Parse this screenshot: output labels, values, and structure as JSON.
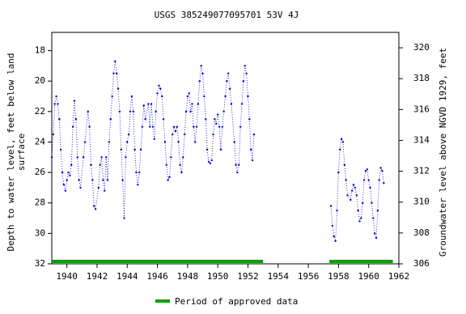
{
  "chart_data": {
    "type": "scatter",
    "title": "USGS 385249077095701 53V  4J",
    "y_label": [
      "Depth to water level, feet below land",
      "surface"
    ],
    "y2_label": "Groundwater level above NGVD 1929, feet",
    "xlim": [
      1939,
      1962
    ],
    "xticks": [
      1940,
      1942,
      1944,
      1946,
      1948,
      1950,
      1952,
      1954,
      1956,
      1958,
      1960,
      1962
    ],
    "ylim": [
      32,
      16.8
    ],
    "yticks": [
      18,
      20,
      22,
      24,
      26,
      28,
      30,
      32
    ],
    "y2lim": [
      306,
      321
    ],
    "y2ticks": [
      306,
      308,
      310,
      312,
      314,
      316,
      318,
      320
    ],
    "x": [
      1939.0,
      1939.1,
      1939.2,
      1939.3,
      1939.4,
      1939.5,
      1939.6,
      1939.7,
      1939.8,
      1939.9,
      1940.0,
      1940.1,
      1940.2,
      1940.3,
      1940.4,
      1940.5,
      1940.6,
      1940.7,
      1940.8,
      1940.9,
      1941.1,
      1941.2,
      1941.4,
      1941.5,
      1941.6,
      1941.7,
      1941.8,
      1941.9,
      1942.1,
      1942.2,
      1942.3,
      1942.4,
      1942.5,
      1942.6,
      1942.7,
      1942.8,
      1942.9,
      1943.0,
      1943.1,
      1943.2,
      1943.3,
      1943.4,
      1943.5,
      1943.6,
      1943.7,
      1943.8,
      1943.9,
      1944.0,
      1944.1,
      1944.2,
      1944.3,
      1944.4,
      1944.5,
      1944.6,
      1944.7,
      1944.8,
      1944.9,
      1945.0,
      1945.1,
      1945.2,
      1945.4,
      1945.5,
      1945.6,
      1945.7,
      1945.8,
      1945.9,
      1946.0,
      1946.1,
      1946.2,
      1946.3,
      1946.4,
      1946.5,
      1946.6,
      1946.7,
      1946.8,
      1946.9,
      1947.0,
      1947.1,
      1947.2,
      1947.3,
      1947.4,
      1947.5,
      1947.6,
      1947.7,
      1947.8,
      1947.9,
      1948.0,
      1948.1,
      1948.2,
      1948.3,
      1948.4,
      1948.5,
      1948.6,
      1948.7,
      1948.8,
      1948.9,
      1949.0,
      1949.1,
      1949.2,
      1949.3,
      1949.4,
      1949.5,
      1949.6,
      1949.7,
      1949.8,
      1949.9,
      1950.0,
      1950.1,
      1950.2,
      1950.3,
      1950.4,
      1950.5,
      1950.6,
      1950.7,
      1950.8,
      1950.9,
      1951.1,
      1951.2,
      1951.3,
      1951.4,
      1951.5,
      1951.6,
      1951.7,
      1951.8,
      1951.9,
      1952.0,
      1952.1,
      1952.2,
      1952.3,
      1952.4,
      1955.0,
      1957.5,
      1957.6,
      1957.7,
      1957.8,
      1957.9,
      1958.0,
      1958.1,
      1958.2,
      1958.3,
      1958.4,
      1958.5,
      1958.6,
      1958.8,
      1958.9,
      1959.0,
      1959.1,
      1959.2,
      1959.3,
      1959.4,
      1959.5,
      1959.6,
      1959.7,
      1959.8,
      1959.9,
      1960.0,
      1960.1,
      1960.2,
      1960.3,
      1960.4,
      1960.5,
      1960.6,
      1960.7,
      1960.8,
      1960.9,
      1961.0
    ],
    "series": [
      {
        "name": "Depth to water level",
        "color": "#0000cc",
        "values": [
          25.0,
          23.5,
          21.5,
          21.0,
          21.5,
          22.5,
          24.5,
          26.0,
          26.8,
          27.2,
          26.5,
          26.0,
          26.2,
          25.5,
          23.0,
          21.3,
          22.5,
          25.0,
          26.5,
          27.0,
          25.0,
          24.0,
          22.0,
          23.0,
          25.5,
          26.5,
          28.2,
          28.4,
          27.0,
          25.5,
          25.0,
          26.5,
          27.2,
          25.0,
          26.5,
          24.0,
          22.5,
          21.0,
          19.5,
          18.7,
          19.5,
          20.5,
          22.0,
          24.5,
          26.5,
          29.0,
          25.0,
          24.0,
          23.5,
          22.0,
          21.0,
          22.0,
          24.5,
          26.0,
          26.8,
          26.0,
          24.5,
          23.0,
          21.6,
          22.5,
          21.5,
          23.0,
          21.5,
          23.0,
          23.8,
          22.0,
          20.8,
          20.3,
          20.5,
          21.0,
          22.5,
          24.0,
          25.5,
          26.5,
          26.3,
          25.0,
          23.5,
          23.0,
          23.3,
          23.0,
          24.0,
          25.5,
          26.0,
          25.0,
          23.5,
          22.0,
          21.0,
          20.8,
          22.0,
          21.5,
          23.0,
          24.0,
          23.0,
          21.5,
          20.0,
          19.0,
          19.5,
          21.0,
          22.5,
          24.5,
          25.3,
          25.4,
          25.2,
          23.5,
          22.5,
          22.8,
          22.2,
          23.0,
          24.5,
          23.0,
          22.0,
          21.0,
          20.0,
          19.5,
          20.5,
          21.5,
          24.0,
          25.5,
          26.0,
          25.5,
          23.0,
          21.5,
          20.0,
          19.0,
          19.5,
          21.0,
          22.5,
          24.5,
          25.2,
          23.5,
          null,
          28.2,
          29.5,
          30.2,
          30.5,
          28.5,
          26.0,
          24.5,
          23.8,
          24.0,
          25.5,
          26.5,
          27.5,
          27.8,
          27.2,
          26.8,
          27.0,
          27.5,
          28.5,
          29.2,
          29.0,
          28.0,
          26.5,
          25.9,
          25.8,
          26.5,
          27.0,
          28.0,
          29.0,
          30.0,
          30.3,
          28.5,
          26.5,
          25.7,
          25.9,
          26.7
        ]
      }
    ],
    "approved": {
      "name": "Period of approved data",
      "color": "#00a000",
      "periods": [
        [
          1939,
          1953
        ],
        [
          1957.4,
          1961.6
        ]
      ]
    }
  }
}
